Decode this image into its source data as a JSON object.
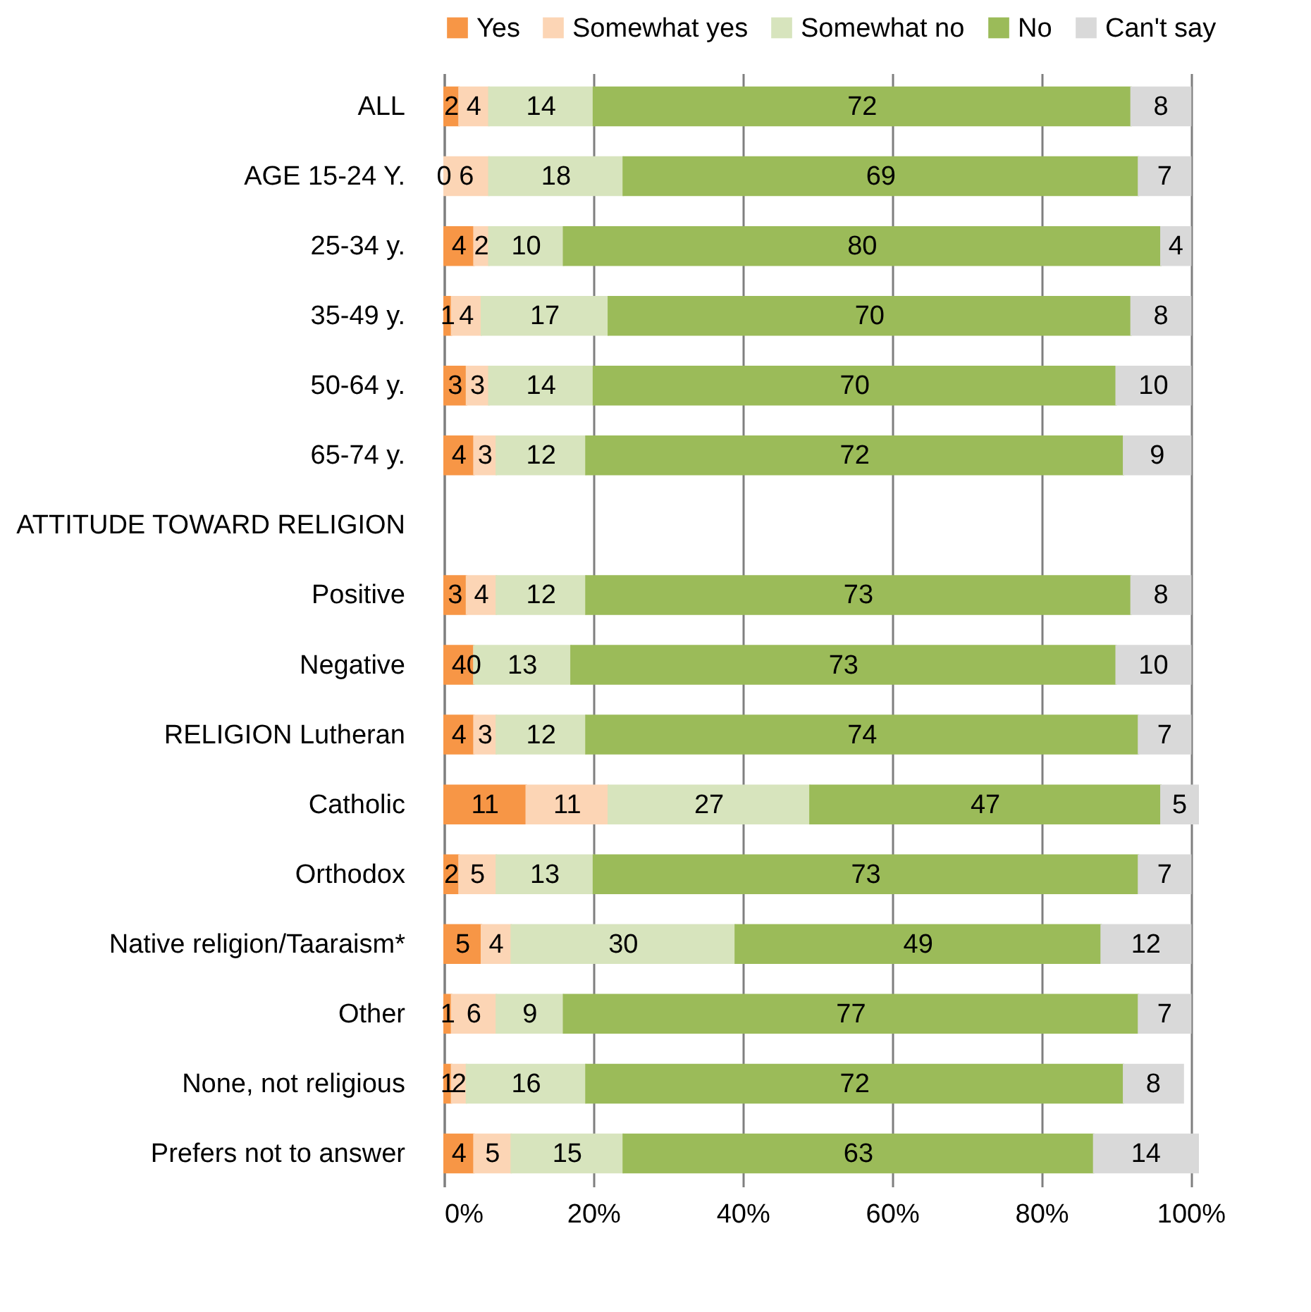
{
  "chart_data": {
    "type": "bar",
    "orientation": "horizontal",
    "stacked": true,
    "data_labels": true,
    "grid": "x",
    "legend": "top",
    "categories": [
      "ALL",
      "AGE 15-24 Y.",
      "25-34 y.",
      "35-49 y.",
      "50-64 y.",
      "65-74 y.",
      "ATTITUDE TOWARD RELIGION",
      "Positive",
      "Negative",
      "RELIGION Lutheran",
      "Catholic",
      "Orthodox",
      "Native religion/Taaraism*",
      "Other",
      "None, not religious",
      "Prefers not to answer"
    ],
    "xlim": [
      0,
      101
    ],
    "xticks": [
      {
        "value": 0,
        "label": "0%"
      },
      {
        "value": 20,
        "label": "20%"
      },
      {
        "value": 40,
        "label": "40%"
      },
      {
        "value": 60,
        "label": "60%"
      },
      {
        "value": 80,
        "label": "80%"
      },
      {
        "value": 100,
        "label": "100%"
      }
    ],
    "series": [
      {
        "name": "Yes",
        "color": "#f79646",
        "values": [
          2,
          0,
          4,
          1,
          3,
          4,
          null,
          3,
          4,
          4,
          11,
          2,
          5,
          1,
          1,
          4
        ]
      },
      {
        "name": "Somewhat yes",
        "color": "#fcd5b5",
        "values": [
          4,
          6,
          2,
          4,
          3,
          3,
          null,
          4,
          0,
          3,
          11,
          5,
          4,
          6,
          2,
          5
        ]
      },
      {
        "name": "Somewhat no",
        "color": "#d7e4bd",
        "values": [
          14,
          18,
          10,
          17,
          14,
          12,
          null,
          12,
          13,
          12,
          27,
          13,
          30,
          9,
          16,
          15
        ]
      },
      {
        "name": "No",
        "color": "#9bbb59",
        "values": [
          72,
          69,
          80,
          70,
          70,
          72,
          null,
          73,
          73,
          74,
          47,
          73,
          49,
          77,
          72,
          63
        ]
      },
      {
        "name": "Can't say",
        "color": "#d9d9d9",
        "values": [
          8,
          7,
          4,
          8,
          10,
          9,
          null,
          8,
          10,
          7,
          5,
          7,
          12,
          7,
          8,
          14
        ]
      }
    ]
  }
}
